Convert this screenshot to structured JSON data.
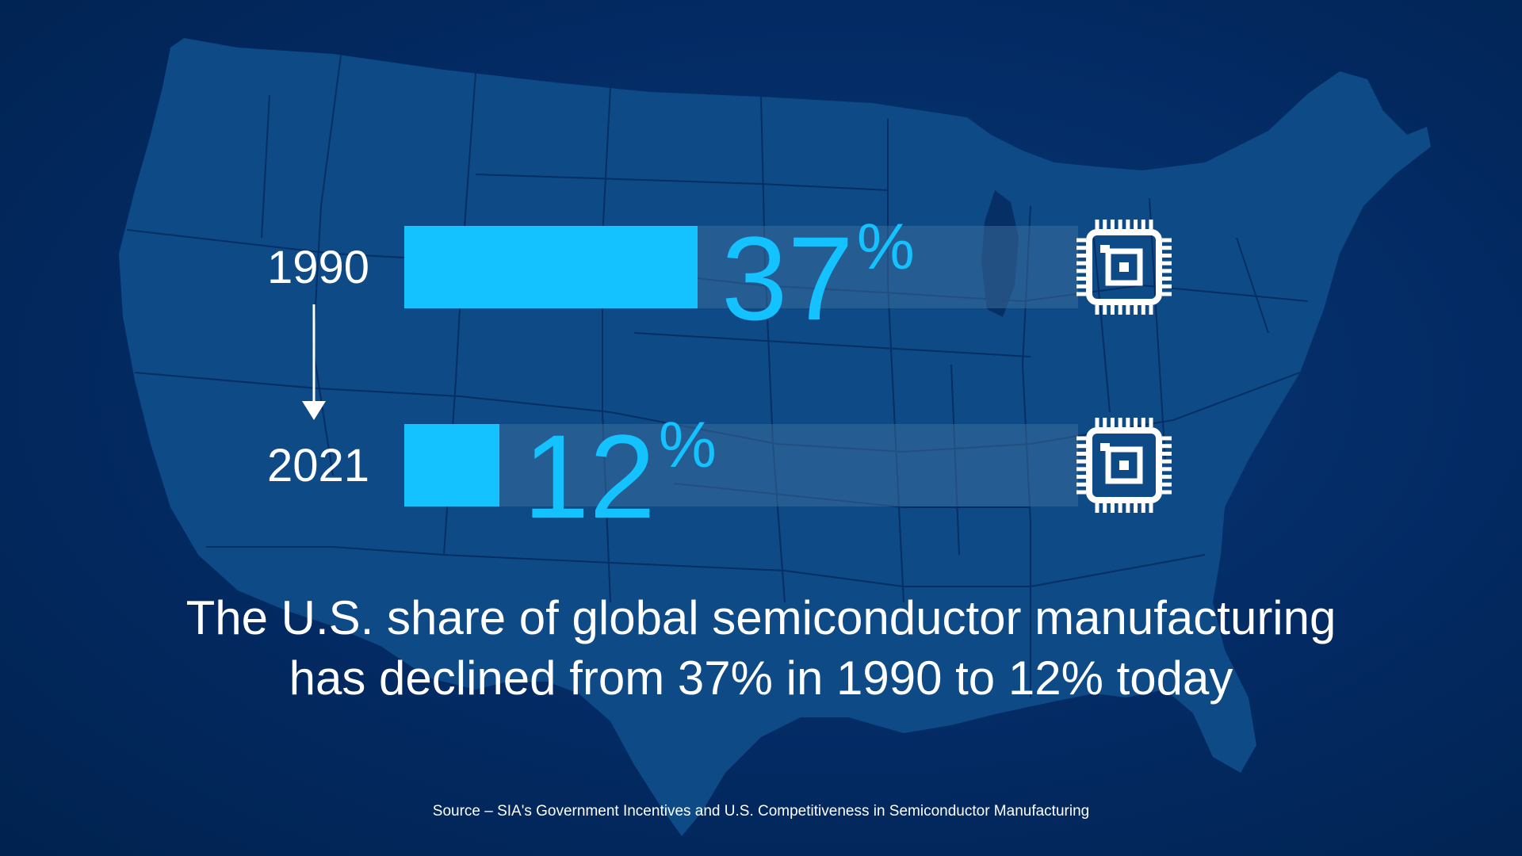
{
  "colors": {
    "background": "#032a63",
    "map_fill": "#0d4a86",
    "map_lines": "#052c62",
    "bar_fill": "#14c2ff",
    "bar_track": "#3a6c9a",
    "text": "#ffffff",
    "accent": "#14c2ff"
  },
  "icons": {
    "chip": "chip-icon",
    "arrow": "arrow-down-icon",
    "map": "us-map-outline"
  },
  "chart_data": {
    "type": "bar",
    "orientation": "horizontal",
    "categories": [
      "1990",
      "2021"
    ],
    "values": [
      37,
      12
    ],
    "value_labels": [
      "37",
      "12"
    ],
    "value_suffix": "%",
    "xlim": [
      0,
      100
    ],
    "title": "",
    "xlabel": "",
    "ylabel": "",
    "grid": false,
    "legend": "none"
  },
  "headline": {
    "line1": "The U.S. share of global semiconductor manufacturing",
    "line2": "has declined from 37% in 1990 to 12% today"
  },
  "source": "Source – SIA's Government Incentives and U.S. Competitiveness in Semiconductor Manufacturing"
}
